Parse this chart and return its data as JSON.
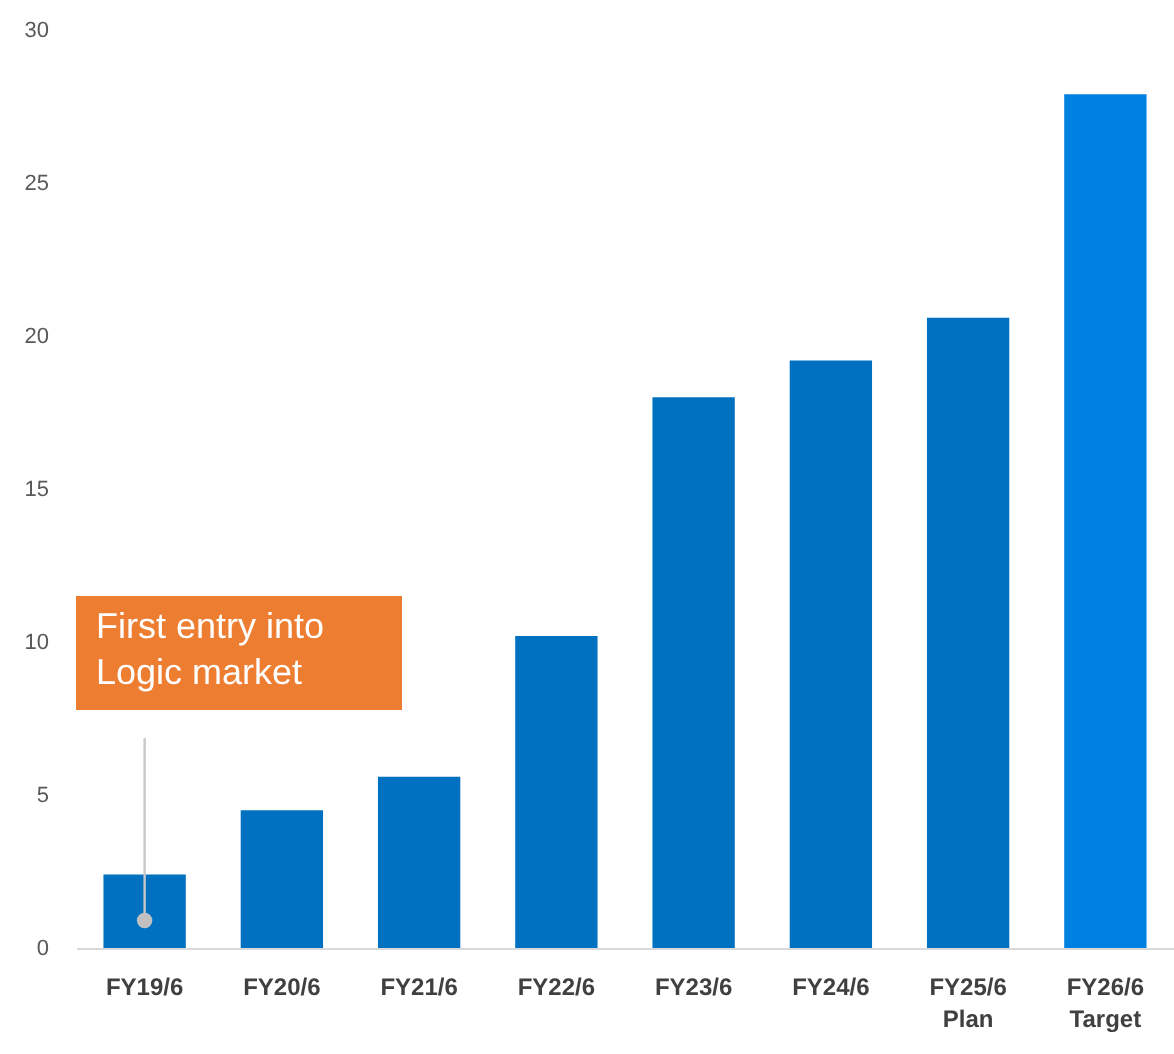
{
  "chart_data": {
    "type": "bar",
    "categories": [
      "FY19/6",
      "FY20/6",
      "FY21/6",
      "FY22/6",
      "FY23/6",
      "FY24/6",
      "FY25/6\nPlan",
      "FY26/6\nTarget"
    ],
    "values": [
      2.4,
      4.5,
      5.6,
      10.2,
      18.0,
      19.2,
      20.6,
      27.9
    ],
    "colors": [
      "#0070c0",
      "#0070c0",
      "#0070c0",
      "#0070c0",
      "#0070c0",
      "#0070c0",
      "#0070c0",
      "#0080e0"
    ],
    "ylim": [
      0,
      30
    ],
    "yticks": [
      0,
      5,
      10,
      15,
      20,
      25,
      30
    ],
    "grid": false,
    "annotations": [
      {
        "text": "First entry into Logic market",
        "x": "FY19/6",
        "y": 0.9
      }
    ]
  }
}
